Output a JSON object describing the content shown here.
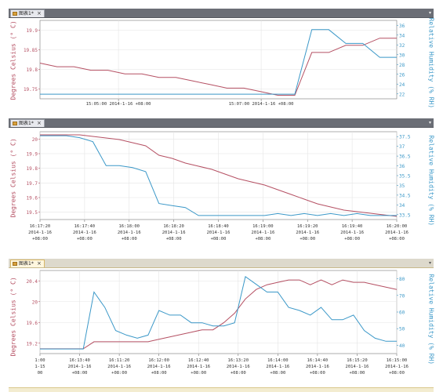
{
  "tabs": [
    {
      "label": "图表1*",
      "close": "×",
      "menu": "▾"
    },
    {
      "label": "图表1*",
      "close": "×",
      "menu": "▾"
    },
    {
      "label": "图表1*",
      "close": "×",
      "menu": "▾"
    }
  ],
  "colors": {
    "temperature": "#b55063",
    "humidity": "#3b98c8",
    "grid": "#e4e4e4",
    "axis": "#777777"
  },
  "chart_data": [
    {
      "type": "line",
      "left_axis_label": "Degrees Celsius (° C)",
      "right_axis_label": "Relative Humidity (% RH)",
      "left_ticks": [
        "19.9",
        "19.85",
        "19.8",
        "19.75"
      ],
      "right_ticks": [
        "36",
        "34",
        "32",
        "30",
        "28",
        "26",
        "24",
        "22"
      ],
      "x_ticks": [
        [
          "15:05:00 2014-1-16 +08:00"
        ],
        [
          "15:07:00 2014-1-16 +08:00"
        ]
      ],
      "temperature": [
        19.81,
        19.8,
        19.8,
        19.79,
        19.79,
        19.78,
        19.78,
        19.77,
        19.77,
        19.76,
        19.75,
        19.74,
        19.74,
        19.73,
        19.72,
        19.72,
        19.84,
        19.84,
        19.86,
        19.86,
        19.88,
        19.88
      ],
      "humidity": [
        22,
        22,
        22,
        22,
        22,
        22,
        22,
        22,
        22,
        22,
        22,
        22,
        22,
        22,
        22,
        22,
        36,
        36,
        33,
        33,
        30,
        30
      ],
      "temp_range": [
        19.71,
        19.93
      ],
      "hum_range": [
        21,
        38
      ]
    },
    {
      "type": "line",
      "left_axis_label": "Degrees Celsius (° C)",
      "right_axis_label": "Relative Humidity (% RH)",
      "left_ticks": [
        "20",
        "19.9",
        "19.8",
        "19.7",
        "19.6",
        "19.5"
      ],
      "right_ticks": [
        "37.5",
        "37",
        "36.5",
        "36",
        "35.5",
        "35",
        "34.5",
        "34",
        "33.5"
      ],
      "x_ticks": [
        [
          "16:17:20",
          "2014-1-16",
          "+08:00"
        ],
        [
          "16:17:40",
          "2014-1-16",
          "+08:00"
        ],
        [
          "16:18:00",
          "2014-1-16",
          "+08:00"
        ],
        [
          "16:18:20",
          "2014-1-16",
          "+08:00"
        ],
        [
          "16:18:40",
          "2014-1-16",
          "+08:00"
        ],
        [
          "16:19:00",
          "2014-1-16",
          "+08:00"
        ],
        [
          "16:19:20",
          "2014-1-16",
          "+08:00"
        ],
        [
          "16:19:40",
          "2014-1-16",
          "+08:00"
        ],
        [
          "16:20:00",
          "2014-1-16",
          "+08:00"
        ]
      ],
      "temperature": [
        20.0,
        20.0,
        20.0,
        20.0,
        19.99,
        19.98,
        19.97,
        19.95,
        19.93,
        19.87,
        19.85,
        19.82,
        19.8,
        19.78,
        19.75,
        19.72,
        19.7,
        19.68,
        19.65,
        19.62,
        19.59,
        19.56,
        19.54,
        19.52,
        19.51,
        19.5,
        19.49,
        19.48
      ],
      "humidity": [
        37.5,
        37.5,
        37.5,
        37.4,
        37.2,
        36.0,
        36.0,
        35.9,
        35.7,
        34.1,
        34.0,
        33.9,
        33.5,
        33.5,
        33.5,
        33.5,
        33.5,
        33.5,
        33.6,
        33.5,
        33.6,
        33.5,
        33.6,
        33.5,
        33.6,
        33.5,
        33.5,
        33.5
      ],
      "temp_range": [
        19.46,
        20.02
      ],
      "hum_range": [
        33.3,
        37.7
      ]
    },
    {
      "type": "line",
      "left_axis_label": "Degrees Celsius (° C)",
      "right_axis_label": "Relative Humidity (% RH)",
      "left_ticks": [
        "20.4",
        "20",
        "19.6",
        "19.2"
      ],
      "right_ticks": [
        "80",
        "70",
        "60",
        "50",
        "40"
      ],
      "x_ticks": [
        [
          "1:00",
          "1-15",
          "00"
        ],
        [
          "16:13:40",
          "2014-1-16",
          "+08:00"
        ],
        [
          "16:11:20",
          "2014-1-16",
          "+08:00"
        ],
        [
          "16:12:00",
          "2014-1-16",
          "+08:00"
        ],
        [
          "16:12:40",
          "2014-1-16",
          "+08:00"
        ],
        [
          "16:13:20",
          "2014-1-16",
          "+08:00"
        ],
        [
          "16:14:00",
          "2014-1-16",
          "+08:00"
        ],
        [
          "16:14:40",
          "2014-1-16",
          "+08:00"
        ],
        [
          "16:15:20",
          "2014-1-16",
          "+08:00"
        ],
        [
          "16:15:00",
          "2014-1-16",
          "+08:00"
        ]
      ],
      "temperature": [
        19.05,
        19.05,
        19.05,
        19.05,
        19.05,
        19.2,
        19.2,
        19.2,
        19.2,
        19.2,
        19.2,
        19.25,
        19.3,
        19.35,
        19.4,
        19.45,
        19.45,
        19.6,
        19.8,
        20.1,
        20.3,
        20.4,
        20.45,
        20.5,
        20.5,
        20.4,
        20.5,
        20.4,
        20.5,
        20.45,
        20.45,
        20.4,
        20.35,
        20.3
      ],
      "humidity": [
        33,
        33,
        33,
        33,
        33,
        70,
        60,
        45,
        42,
        40,
        42,
        58,
        55,
        55,
        50,
        50,
        48,
        48,
        50,
        80,
        75,
        70,
        70,
        60,
        58,
        55,
        60,
        52,
        52,
        55,
        45,
        40,
        38,
        38
      ],
      "temp_range": [
        18.95,
        20.7
      ],
      "hum_range": [
        30,
        84
      ]
    }
  ]
}
